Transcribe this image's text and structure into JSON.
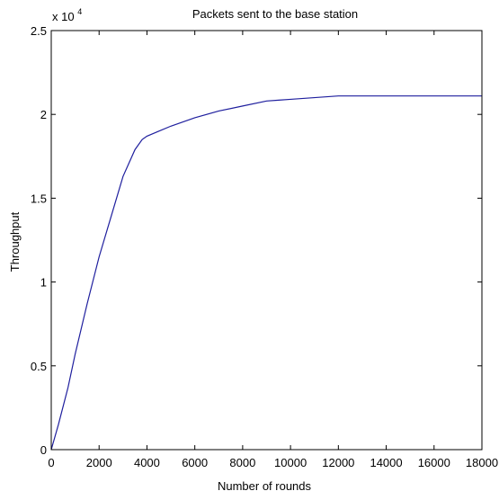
{
  "chart_data": {
    "type": "line",
    "title": "Packets sent to the base station",
    "xlabel": "Number of rounds",
    "ylabel": "Throughput",
    "xlim": [
      0,
      18000
    ],
    "ylim": [
      0,
      25000
    ],
    "xticks": [
      0,
      2000,
      4000,
      6000,
      8000,
      10000,
      12000,
      14000,
      16000,
      18000
    ],
    "xtick_labels": [
      "0",
      "2000",
      "4000",
      "6000",
      "8000",
      "10000",
      "12000",
      "14000",
      "16000",
      "18000"
    ],
    "yticks": [
      0,
      5000,
      10000,
      15000,
      20000,
      25000
    ],
    "ytick_labels": [
      "0",
      "0.5",
      "1",
      "1.5",
      "2",
      "2.5"
    ],
    "y_exponent_base": "x 10",
    "y_exponent_power": "4",
    "grid": false,
    "legend": "none",
    "series": [
      {
        "color": "#1f1f9e",
        "x": [
          0,
          300,
          700,
          1000,
          1500,
          2000,
          2500,
          3000,
          3500,
          3800,
          4000,
          4500,
          5000,
          6000,
          7000,
          8000,
          9000,
          9500,
          10000,
          11000,
          12000,
          13000,
          14000,
          16000,
          18000
        ],
        "y": [
          0,
          1500,
          3700,
          5700,
          8700,
          11500,
          13900,
          16300,
          17900,
          18500,
          18700,
          19000,
          19300,
          19800,
          20200,
          20500,
          20800,
          20850,
          20900,
          21000,
          21100,
          21100,
          21100,
          21100,
          21100
        ]
      }
    ]
  }
}
